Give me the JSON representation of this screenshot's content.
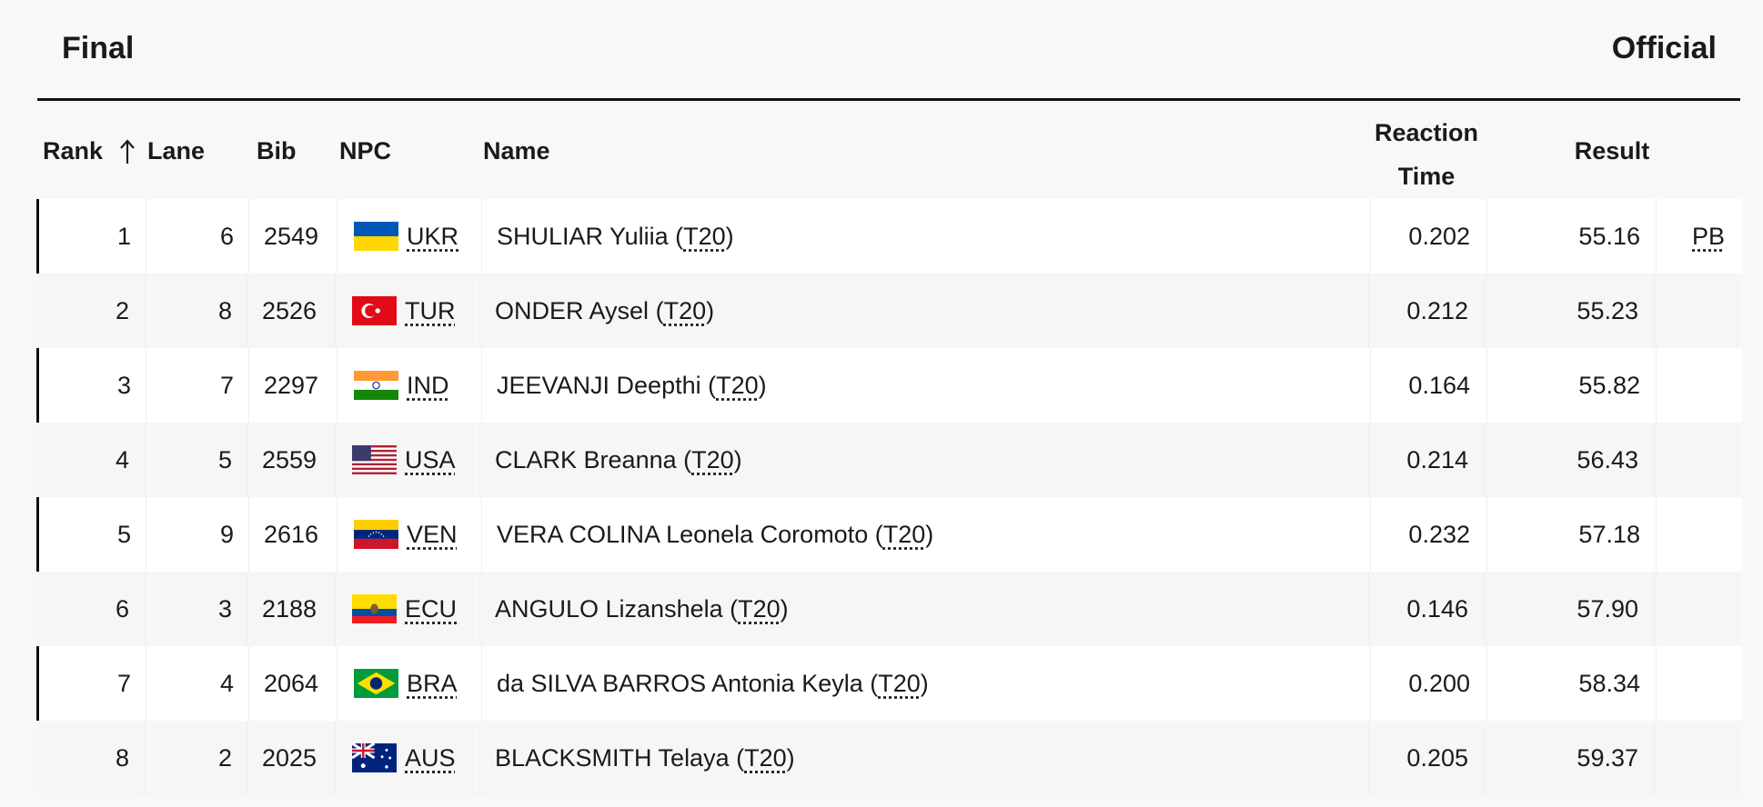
{
  "header": {
    "title": "Final",
    "status": "Official"
  },
  "table": {
    "columns": [
      "Rank",
      "Lane",
      "Bib",
      "NPC",
      "Name",
      "Reaction Time",
      "Result"
    ],
    "rows": [
      {
        "rank": "1",
        "lane": "6",
        "bib": "2549",
        "npc": "UKR",
        "name": "SHULIAR Yuliia",
        "class": "T20",
        "reaction": "0.202",
        "result": "55.16",
        "record": "PB"
      },
      {
        "rank": "2",
        "lane": "8",
        "bib": "2526",
        "npc": "TUR",
        "name": "ONDER Aysel",
        "class": "T20",
        "reaction": "0.212",
        "result": "55.23"
      },
      {
        "rank": "3",
        "lane": "7",
        "bib": "2297",
        "npc": "IND",
        "name": "JEEVANJI Deepthi",
        "class": "T20",
        "reaction": "0.164",
        "result": "55.82"
      },
      {
        "rank": "4",
        "lane": "5",
        "bib": "2559",
        "npc": "USA",
        "name": "CLARK Breanna",
        "class": "T20",
        "reaction": "0.214",
        "result": "56.43"
      },
      {
        "rank": "5",
        "lane": "9",
        "bib": "2616",
        "npc": "VEN",
        "name": "VERA COLINA Leonela Coromoto",
        "class": "T20",
        "reaction": "0.232",
        "result": "57.18"
      },
      {
        "rank": "6",
        "lane": "3",
        "bib": "2188",
        "npc": "ECU",
        "name": "ANGULO Lizanshela",
        "class": "T20",
        "reaction": "0.146",
        "result": "57.90"
      },
      {
        "rank": "7",
        "lane": "4",
        "bib": "2064",
        "npc": "BRA",
        "name": "da SILVA BARROS Antonia Keyla",
        "class": "T20",
        "reaction": "0.200",
        "result": "58.34"
      },
      {
        "rank": "8",
        "lane": "2",
        "bib": "2025",
        "npc": "AUS",
        "name": "BLACKSMITH Telaya",
        "class": "T20",
        "reaction": "0.205",
        "result": "59.37"
      }
    ]
  }
}
